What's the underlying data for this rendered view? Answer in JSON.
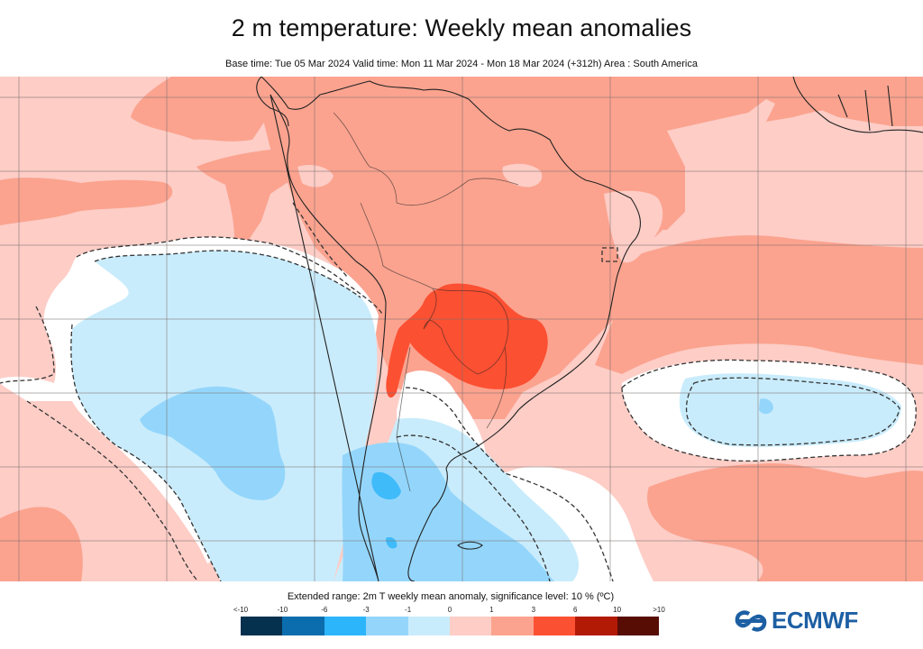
{
  "header": {
    "title": "2 m temperature: Weekly mean anomalies",
    "subtitle": "Base time: Tue 05 Mar 2024 Valid time: Mon 11 Mar 2024 - Mon 18 Mar 2024 (+312h) Area : South America"
  },
  "map": {
    "area": "South America",
    "variable": "2m temperature weekly mean anomaly",
    "significance_contour": "dashed line, 10 % significance level",
    "features": [
      {
        "name": "central-south-america-warm-core",
        "category": "3 to 6",
        "region": "Paraguay, southern Brazil, northern Argentina"
      },
      {
        "name": "continental-warm-area",
        "category": "1 to 3",
        "region": "Brazil, Bolivia, Peru, Colombia, Venezuela"
      },
      {
        "name": "southeast-pacific-cool-area",
        "category": "-1 to 0",
        "region": "Southeast Pacific off Chile"
      },
      {
        "name": "patagonia-cool-area",
        "category": "-3 to -1",
        "region": "Patagonia and adjacent Pacific"
      },
      {
        "name": "south-atlantic-cool-area",
        "category": "-1 to 0",
        "region": "South Atlantic east of Uruguay"
      },
      {
        "name": "west-africa-warm-area",
        "category": "1 to 3",
        "region": "West Africa (top right)"
      }
    ]
  },
  "legend": {
    "title": "Extended range: 2m T weekly mean anomaly, significance level: 10 % (ºC)",
    "ticks": [
      "<-10",
      "-10",
      "-6",
      "-3",
      "-1",
      "0",
      "1",
      "3",
      "6",
      "10",
      ">10"
    ],
    "bins": [
      {
        "range": "< -10",
        "color": "#05314f"
      },
      {
        "range": "-10 to -6",
        "color": "#0b6dad"
      },
      {
        "range": "-6 to -3",
        "color": "#2cb5fa"
      },
      {
        "range": "-3 to -1",
        "color": "#94d6fb"
      },
      {
        "range": "-1 to 0",
        "color": "#c9ecfc"
      },
      {
        "range": "0 to 1",
        "color": "#fdcdc6"
      },
      {
        "range": "1 to 3",
        "color": "#fba38f"
      },
      {
        "range": "3 to 6",
        "color": "#fc5032"
      },
      {
        "range": "6 to 10",
        "color": "#b31a06"
      },
      {
        "range": "> 10",
        "color": "#570c04"
      }
    ]
  },
  "logo": {
    "text": "ECMWF",
    "color": "#1d5fa3"
  }
}
